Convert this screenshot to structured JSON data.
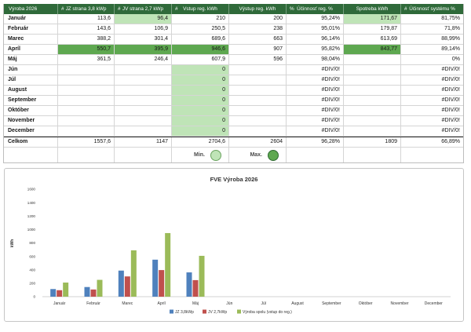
{
  "colors": {
    "header_bg": "#2f6a3a",
    "min_fill": "#bfe4b7",
    "max_fill": "#5ea850"
  },
  "table": {
    "title": "Výroba 2026",
    "columns": [
      {
        "prefix": "#",
        "label": "JZ strana 3,8 kWp"
      },
      {
        "prefix": "#",
        "label": "JV strana 2,7 kWp"
      },
      {
        "prefix": "#",
        "label": "Vstup reg. kWh"
      },
      {
        "label": "Výstup reg. kWh"
      },
      {
        "prefix": "%",
        "label": "Účinnosť reg. %"
      },
      {
        "label": "Spotreba kWh"
      },
      {
        "prefix": "#",
        "label": "Účinnosť systému %"
      }
    ],
    "rows": [
      {
        "month": "Január",
        "values": [
          "113,6",
          "96,4",
          "210",
          "200",
          "95,24%",
          "171,67",
          "81,75%"
        ],
        "min_cols": [
          1,
          5
        ]
      },
      {
        "month": "Február",
        "values": [
          "143,6",
          "106,9",
          "250,5",
          "238",
          "95,01%",
          "179,87",
          "71,8%"
        ]
      },
      {
        "month": "Marec",
        "values": [
          "388,2",
          "301,4",
          "689,6",
          "663",
          "96,14%",
          "613,69",
          "88,99%"
        ]
      },
      {
        "month": "Apríl",
        "values": [
          "550,7",
          "395,9",
          "946,6",
          "907",
          "95,82%",
          "843,77",
          "89,14%"
        ],
        "max_cols": [
          0,
          1,
          2,
          5
        ]
      },
      {
        "month": "Máj",
        "values": [
          "361,5",
          "246,4",
          "607,9",
          "596",
          "98,04%",
          "",
          "0%"
        ]
      },
      {
        "month": "Jún",
        "values": [
          "",
          "",
          "0",
          "",
          "#DIV/0!",
          "",
          "#DIV/0!"
        ],
        "min_cols": [
          2
        ]
      },
      {
        "month": "Júl",
        "values": [
          "",
          "",
          "0",
          "",
          "#DIV/0!",
          "",
          "#DIV/0!"
        ],
        "min_cols": [
          2
        ]
      },
      {
        "month": "August",
        "values": [
          "",
          "",
          "0",
          "",
          "#DIV/0!",
          "",
          "#DIV/0!"
        ],
        "min_cols": [
          2
        ]
      },
      {
        "month": "September",
        "values": [
          "",
          "",
          "0",
          "",
          "#DIV/0!",
          "",
          "#DIV/0!"
        ],
        "min_cols": [
          2
        ]
      },
      {
        "month": "Október",
        "values": [
          "",
          "",
          "0",
          "",
          "#DIV/0!",
          "",
          "#DIV/0!"
        ],
        "min_cols": [
          2
        ]
      },
      {
        "month": "November",
        "values": [
          "",
          "",
          "0",
          "",
          "#DIV/0!",
          "",
          "#DIV/0!"
        ],
        "min_cols": [
          2
        ]
      },
      {
        "month": "December",
        "values": [
          "",
          "",
          "0",
          "",
          "#DIV/0!",
          "",
          "#DIV/0!"
        ],
        "min_cols": [
          2
        ]
      }
    ],
    "totals": {
      "label": "Celkom",
      "values": [
        "1557,6",
        "1147",
        "2704,6",
        "2604",
        "96,28%",
        "1809",
        "66,89%"
      ]
    },
    "legend": {
      "min_label": "Min.",
      "max_label": "Max."
    }
  },
  "chart_data": {
    "type": "bar",
    "title": "FVE Výroba 2026",
    "xlabel": "",
    "ylabel": "kWh",
    "ylim": [
      0,
      1600
    ],
    "yticks": [
      0,
      200,
      400,
      600,
      800,
      1000,
      1200,
      1400,
      1600
    ],
    "grid": false,
    "legend_position": "bottom",
    "categories": [
      "Január",
      "Február",
      "Marec",
      "Apríl",
      "Máj",
      "Jún",
      "Júl",
      "August",
      "September",
      "Október",
      "November",
      "December"
    ],
    "series": [
      {
        "name": "JZ 3,8kWp",
        "color": "#4f81bd",
        "values": [
          113.6,
          143.6,
          388.2,
          550.7,
          361.5,
          null,
          null,
          null,
          null,
          null,
          null,
          null
        ]
      },
      {
        "name": "JV 2,7kWp",
        "color": "#c0504d",
        "values": [
          96.4,
          106.9,
          301.4,
          395.9,
          246.4,
          null,
          null,
          null,
          null,
          null,
          null,
          null
        ]
      },
      {
        "name": "Výroba spolu (vstup do reg.)",
        "color": "#9bbb59",
        "values": [
          210,
          250.5,
          689.6,
          946.6,
          607.9,
          0,
          0,
          0,
          0,
          0,
          0,
          0
        ]
      }
    ]
  }
}
